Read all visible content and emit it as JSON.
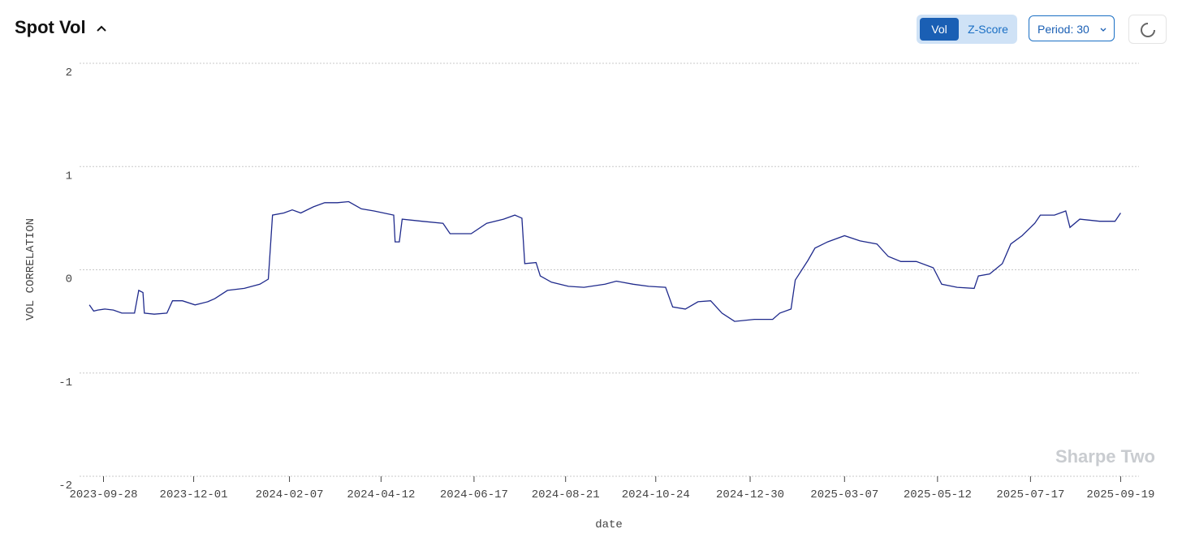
{
  "header": {
    "title": "Spot Vol",
    "toggle": [
      "Vol",
      "Z-Score"
    ],
    "period": "Period: 30"
  },
  "watermark": "Sharpe Two",
  "chart_data": {
    "type": "line",
    "x_label": "date",
    "y_label": "VOL CORRELATION",
    "x": [
      "2023-09-18",
      "2023-09-21",
      "2023-09-24",
      "2023-09-29",
      "2023-10-05",
      "2023-10-11",
      "2023-10-20",
      "2023-10-23",
      "2023-10-26",
      "2023-10-27",
      "2023-11-03",
      "2023-11-12",
      "2023-11-16",
      "2023-11-23",
      "2023-12-02",
      "2023-12-11",
      "2023-12-16",
      "2023-12-25",
      "2024-01-06",
      "2024-01-17",
      "2024-01-23",
      "2024-01-26",
      "2024-02-03",
      "2024-02-09",
      "2024-02-15",
      "2024-02-24",
      "2024-03-03",
      "2024-03-12",
      "2024-03-20",
      "2024-03-29",
      "2024-04-07",
      "2024-04-21",
      "2024-04-22",
      "2024-04-25",
      "2024-04-27",
      "2024-05-11",
      "2024-05-26",
      "2024-05-31",
      "2024-06-15",
      "2024-06-26",
      "2024-07-08",
      "2024-07-16",
      "2024-07-21",
      "2024-07-23",
      "2024-07-31",
      "2024-08-03",
      "2024-08-11",
      "2024-08-23",
      "2024-09-03",
      "2024-09-18",
      "2024-09-26",
      "2024-10-08",
      "2024-10-19",
      "2024-10-31",
      "2024-11-05",
      "2024-11-14",
      "2024-11-23",
      "2024-12-02",
      "2024-12-10",
      "2024-12-19",
      "2025-01-02",
      "2025-01-15",
      "2025-01-20",
      "2025-01-28",
      "2025-01-31",
      "2025-02-09",
      "2025-02-14",
      "2025-02-23",
      "2025-03-07",
      "2025-03-18",
      "2025-03-30",
      "2025-04-07",
      "2025-04-16",
      "2025-04-27",
      "2025-05-09",
      "2025-05-15",
      "2025-05-26",
      "2025-06-07",
      "2025-06-10",
      "2025-06-18",
      "2025-06-27",
      "2025-07-03",
      "2025-07-11",
      "2025-07-20",
      "2025-07-24",
      "2025-08-03",
      "2025-08-11",
      "2025-08-14",
      "2025-08-21",
      "2025-09-04",
      "2025-09-15",
      "2025-09-19"
    ],
    "series": [
      {
        "name": "VOL CORRELATION",
        "color": "#1f2a8c",
        "values": [
          -0.34,
          -0.4,
          -0.39,
          -0.38,
          -0.39,
          -0.42,
          -0.42,
          -0.2,
          -0.22,
          -0.42,
          -0.43,
          -0.42,
          -0.3,
          -0.3,
          -0.34,
          -0.31,
          -0.28,
          -0.2,
          -0.18,
          -0.14,
          -0.09,
          0.53,
          0.55,
          0.58,
          0.55,
          0.61,
          0.65,
          0.65,
          0.66,
          0.59,
          0.57,
          0.53,
          0.27,
          0.27,
          0.49,
          0.47,
          0.45,
          0.35,
          0.35,
          0.45,
          0.49,
          0.53,
          0.5,
          0.06,
          0.07,
          -0.06,
          -0.12,
          -0.16,
          -0.17,
          -0.14,
          -0.11,
          -0.14,
          -0.16,
          -0.17,
          -0.36,
          -0.38,
          -0.31,
          -0.3,
          -0.42,
          -0.5,
          -0.48,
          -0.48,
          -0.42,
          -0.38,
          -0.1,
          0.09,
          0.21,
          0.27,
          0.33,
          0.28,
          0.25,
          0.13,
          0.08,
          0.08,
          0.02,
          -0.14,
          -0.17,
          -0.18,
          -0.06,
          -0.04,
          0.06,
          0.25,
          0.33,
          0.45,
          0.53,
          0.53,
          0.57,
          0.41,
          0.49,
          0.47,
          0.47,
          0.55
        ]
      }
    ],
    "xlim": [
      "2023-09-11",
      "2025-10-02"
    ],
    "xticks": [
      "2023-09-28",
      "2023-12-01",
      "2024-02-07",
      "2024-04-12",
      "2024-06-17",
      "2024-08-21",
      "2024-10-24",
      "2024-12-30",
      "2025-03-07",
      "2025-05-12",
      "2025-07-17",
      "2025-09-19"
    ],
    "ylim": [
      -2,
      2
    ],
    "yticks": [
      2,
      1,
      0,
      -1,
      -2
    ],
    "grid": true
  }
}
